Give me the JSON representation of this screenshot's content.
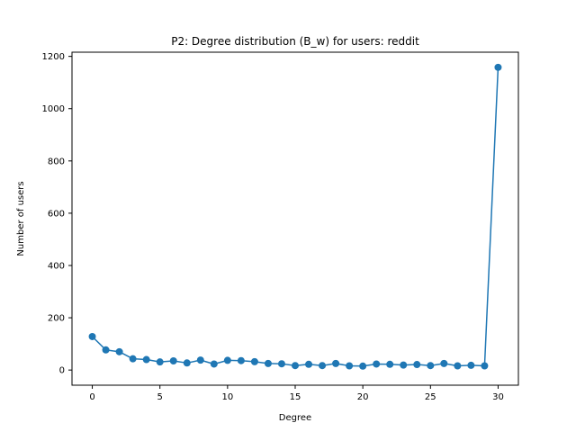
{
  "chart_data": {
    "type": "line",
    "title": "P2: Degree distribution (B_w) for users: reddit",
    "xlabel": "Degree",
    "ylabel": "Number of users",
    "xlim": [
      -1.5,
      31.5
    ],
    "ylim": [
      -58,
      1216
    ],
    "xticks": [
      0,
      5,
      10,
      15,
      20,
      25,
      30
    ],
    "yticks": [
      0,
      200,
      400,
      600,
      800,
      1000,
      1200
    ],
    "grid": false,
    "marker": "circle",
    "color": "#1f77b4",
    "x": [
      0,
      1,
      2,
      3,
      4,
      5,
      6,
      7,
      8,
      9,
      10,
      11,
      12,
      13,
      14,
      15,
      16,
      17,
      18,
      19,
      20,
      21,
      22,
      23,
      24,
      25,
      26,
      27,
      28,
      29,
      30
    ],
    "y": [
      128,
      77,
      70,
      43,
      40,
      31,
      35,
      27,
      38,
      23,
      37,
      36,
      32,
      25,
      24,
      17,
      22,
      17,
      25,
      16,
      15,
      23,
      22,
      19,
      21,
      17,
      25,
      16,
      18,
      16,
      1158
    ]
  }
}
